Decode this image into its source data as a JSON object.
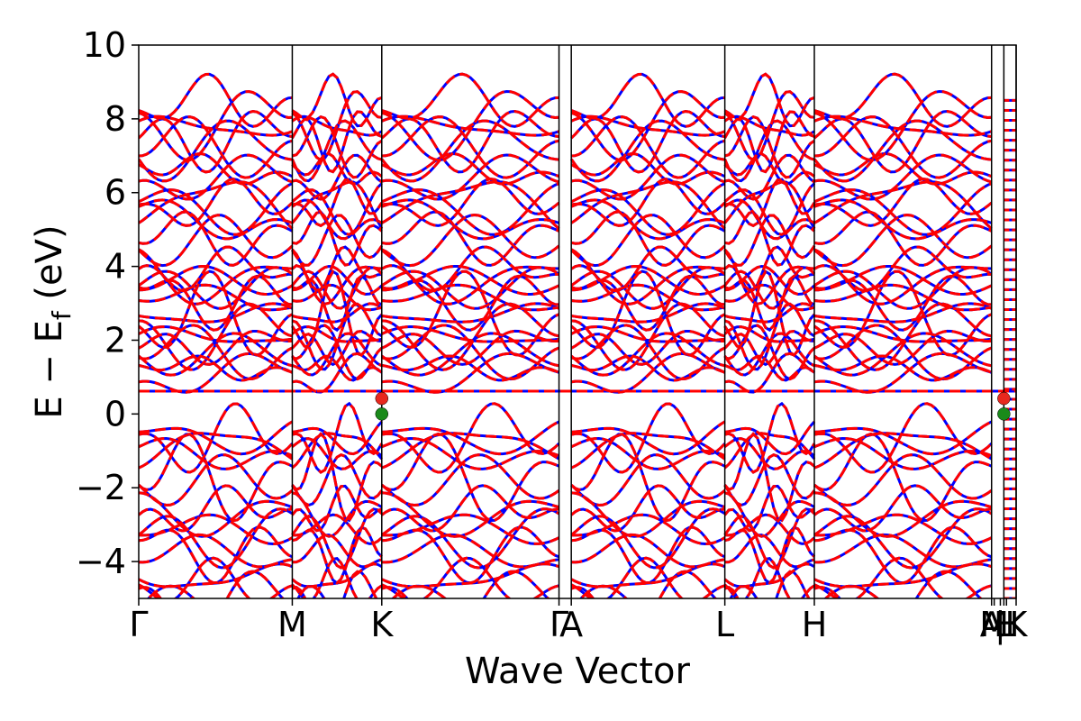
{
  "chart_data": {
    "type": "line",
    "xlabel": "Wave Vector",
    "ylabel": "E − E_f (eV)",
    "ylabel_main": "E − E",
    "ylabel_sub": "f",
    "ylabel_unit": " (eV)",
    "ylim": [
      -5,
      10
    ],
    "yticks": [
      -4,
      -2,
      0,
      2,
      4,
      6,
      8,
      10
    ],
    "ytick_labels": [
      "−4",
      "−2",
      "0",
      "2",
      "4",
      "6",
      "8",
      "10"
    ],
    "xlim": [
      0,
      1
    ],
    "kpoints": [
      {
        "label": "Γ",
        "x": 0.0,
        "line": false
      },
      {
        "label": "M",
        "x": 0.175,
        "line": true
      },
      {
        "label": "K",
        "x": 0.277,
        "line": true
      },
      {
        "label": "Γ",
        "x": 0.479,
        "line": true
      },
      {
        "label": "A",
        "x": 0.493,
        "line": true
      },
      {
        "label": "L",
        "x": 0.668,
        "line": true
      },
      {
        "label": "H",
        "x": 0.77,
        "line": true
      },
      {
        "label": "A",
        "x": 0.972,
        "line": true
      },
      {
        "label": "M",
        "x": 0.975,
        "line": false
      },
      {
        "label": "|",
        "x": 0.982,
        "line": false
      },
      {
        "label": "L",
        "x": 0.986,
        "line": true
      },
      {
        "label": "H",
        "x": 0.989,
        "line": false
      },
      {
        "label": "K",
        "x": 1.0,
        "line": true
      }
    ],
    "series": [
      {
        "style": "solid",
        "color": "#0000ff"
      },
      {
        "style": "dashed",
        "color": "#ff0000"
      }
    ],
    "flat_band_energy": 0.62,
    "markers": [
      {
        "x": 0.277,
        "y": 0.42,
        "color": "#e8281e"
      },
      {
        "x": 0.277,
        "y": 0.0,
        "color": "#1a8a1a"
      },
      {
        "x": 0.986,
        "y": 0.42,
        "color": "#e8281e"
      },
      {
        "x": 0.986,
        "y": 0.0,
        "color": "#1a8a1a"
      }
    ]
  }
}
